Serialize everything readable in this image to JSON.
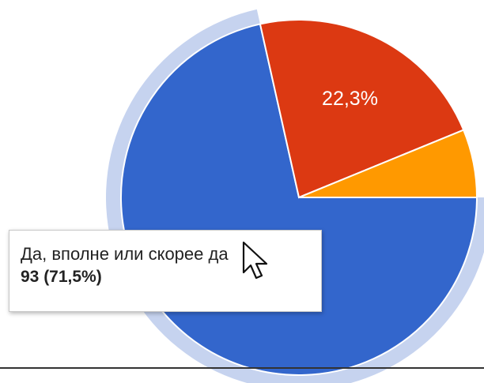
{
  "chart_data": {
    "type": "pie",
    "slices": [
      {
        "label": "Да, вполне или скорее да",
        "value": 71.5,
        "count": 93,
        "color": "#3366cc",
        "shown_label": ""
      },
      {
        "label": "",
        "value": 22.3,
        "color": "#dc3912",
        "shown_label": "22,3%"
      },
      {
        "label": "",
        "value": 6.2,
        "color": "#ff9900",
        "shown_label": ""
      }
    ],
    "highlighted_slice": 0,
    "highlight_ring_color": "#c6d3ef"
  },
  "tooltip": {
    "label": "Да, вполне или скорее да",
    "value": "93 (71,5%)"
  },
  "cursor_icon": "arrow-pointer-icon"
}
